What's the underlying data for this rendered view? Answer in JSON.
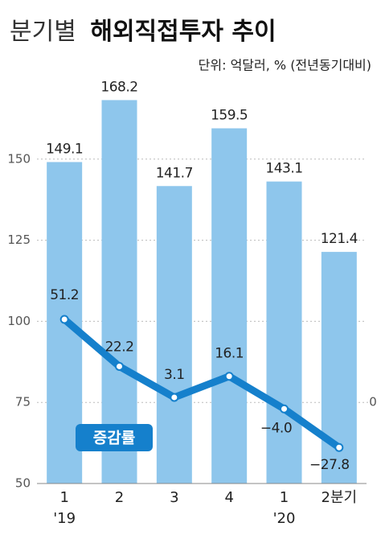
{
  "chart_data": {
    "type": "bar+line",
    "title_prefix": "분기별",
    "title": "해외직접투자 추이",
    "subtitle": "단위: 억달러, % (전년동기대비)",
    "annotation": "증감률",
    "categories": [
      "1",
      "2",
      "3",
      "4",
      "1",
      "2분기"
    ],
    "year_labels": [
      "'19",
      null,
      null,
      null,
      "'20",
      null
    ],
    "series": [
      {
        "type": "bar",
        "color": "#8ec6ec",
        "values": [
          149.1,
          168.2,
          141.7,
          159.5,
          143.1,
          121.4
        ]
      },
      {
        "type": "line",
        "name": "증감률",
        "axis": "y2",
        "color": "#1580cc",
        "values": [
          51.2,
          22.2,
          3.1,
          16.1,
          -4.0,
          -27.8
        ],
        "value_labels": [
          "51.2",
          "22.2",
          "3.1",
          "16.1",
          "−4.0",
          "−27.8"
        ]
      }
    ],
    "ylim": [
      50,
      175
    ],
    "yticks": [
      50,
      75,
      100,
      125,
      150
    ],
    "y2lim": [
      -50,
      200
    ],
    "y2ticks": [
      0
    ],
    "grid": true
  }
}
